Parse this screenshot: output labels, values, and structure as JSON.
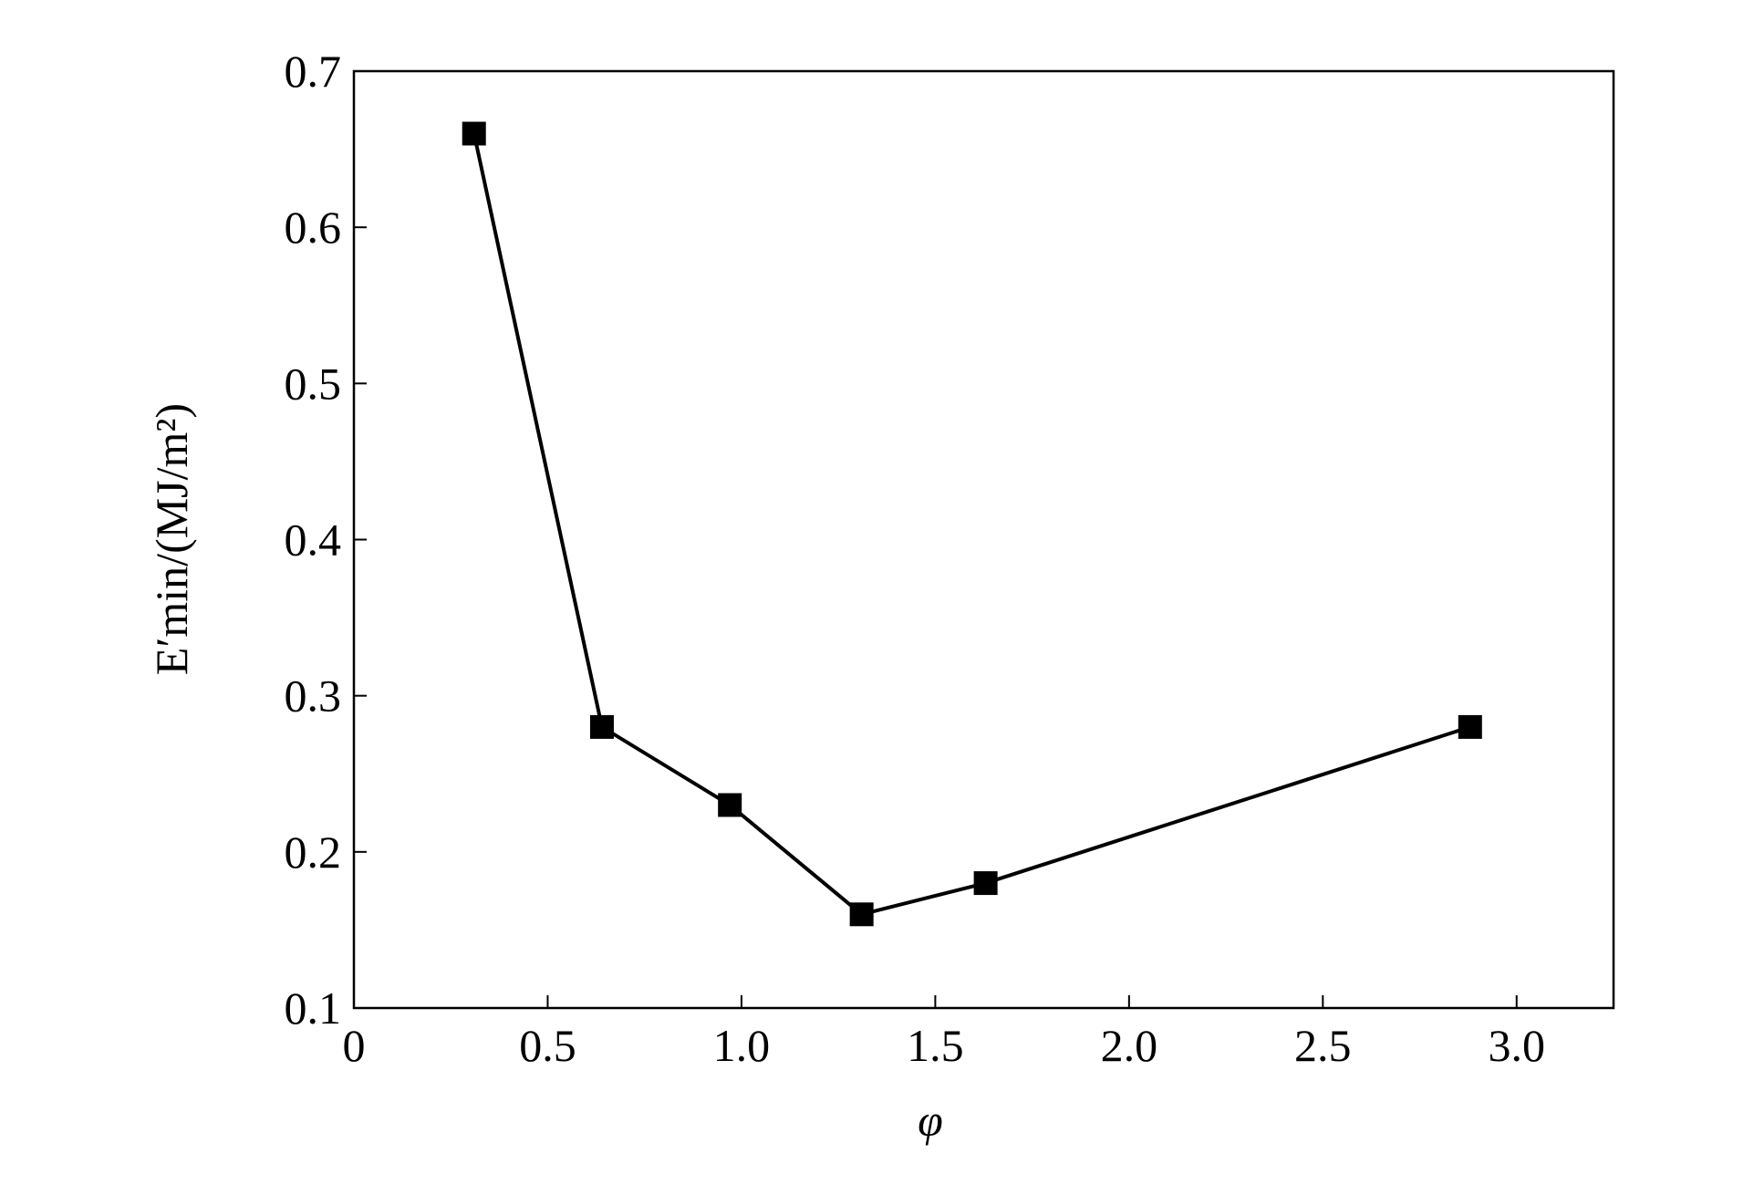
{
  "chart_data": {
    "type": "line",
    "xlabel": "φ",
    "ylabel": "E′min/(MJ/m²)",
    "x": [
      0.31,
      0.64,
      0.97,
      1.31,
      1.63,
      2.88
    ],
    "series": [
      {
        "color": "#000000",
        "values": [
          0.66,
          0.28,
          0.23,
          0.16,
          0.18,
          0.28
        ]
      }
    ],
    "xlim": [
      0,
      3.25
    ],
    "ylim": [
      0.1,
      0.7
    ],
    "xticks": [
      0,
      0.5,
      {
        "value": 1,
        "label": "1.0"
      },
      1.5,
      {
        "value": 2,
        "label": "2.0"
      },
      2.5,
      {
        "value": 3,
        "label": "3.0"
      }
    ],
    "yticks": [
      0.1,
      0.2,
      0.3,
      0.4,
      0.5,
      0.6,
      0.7
    ],
    "grid": false
  }
}
